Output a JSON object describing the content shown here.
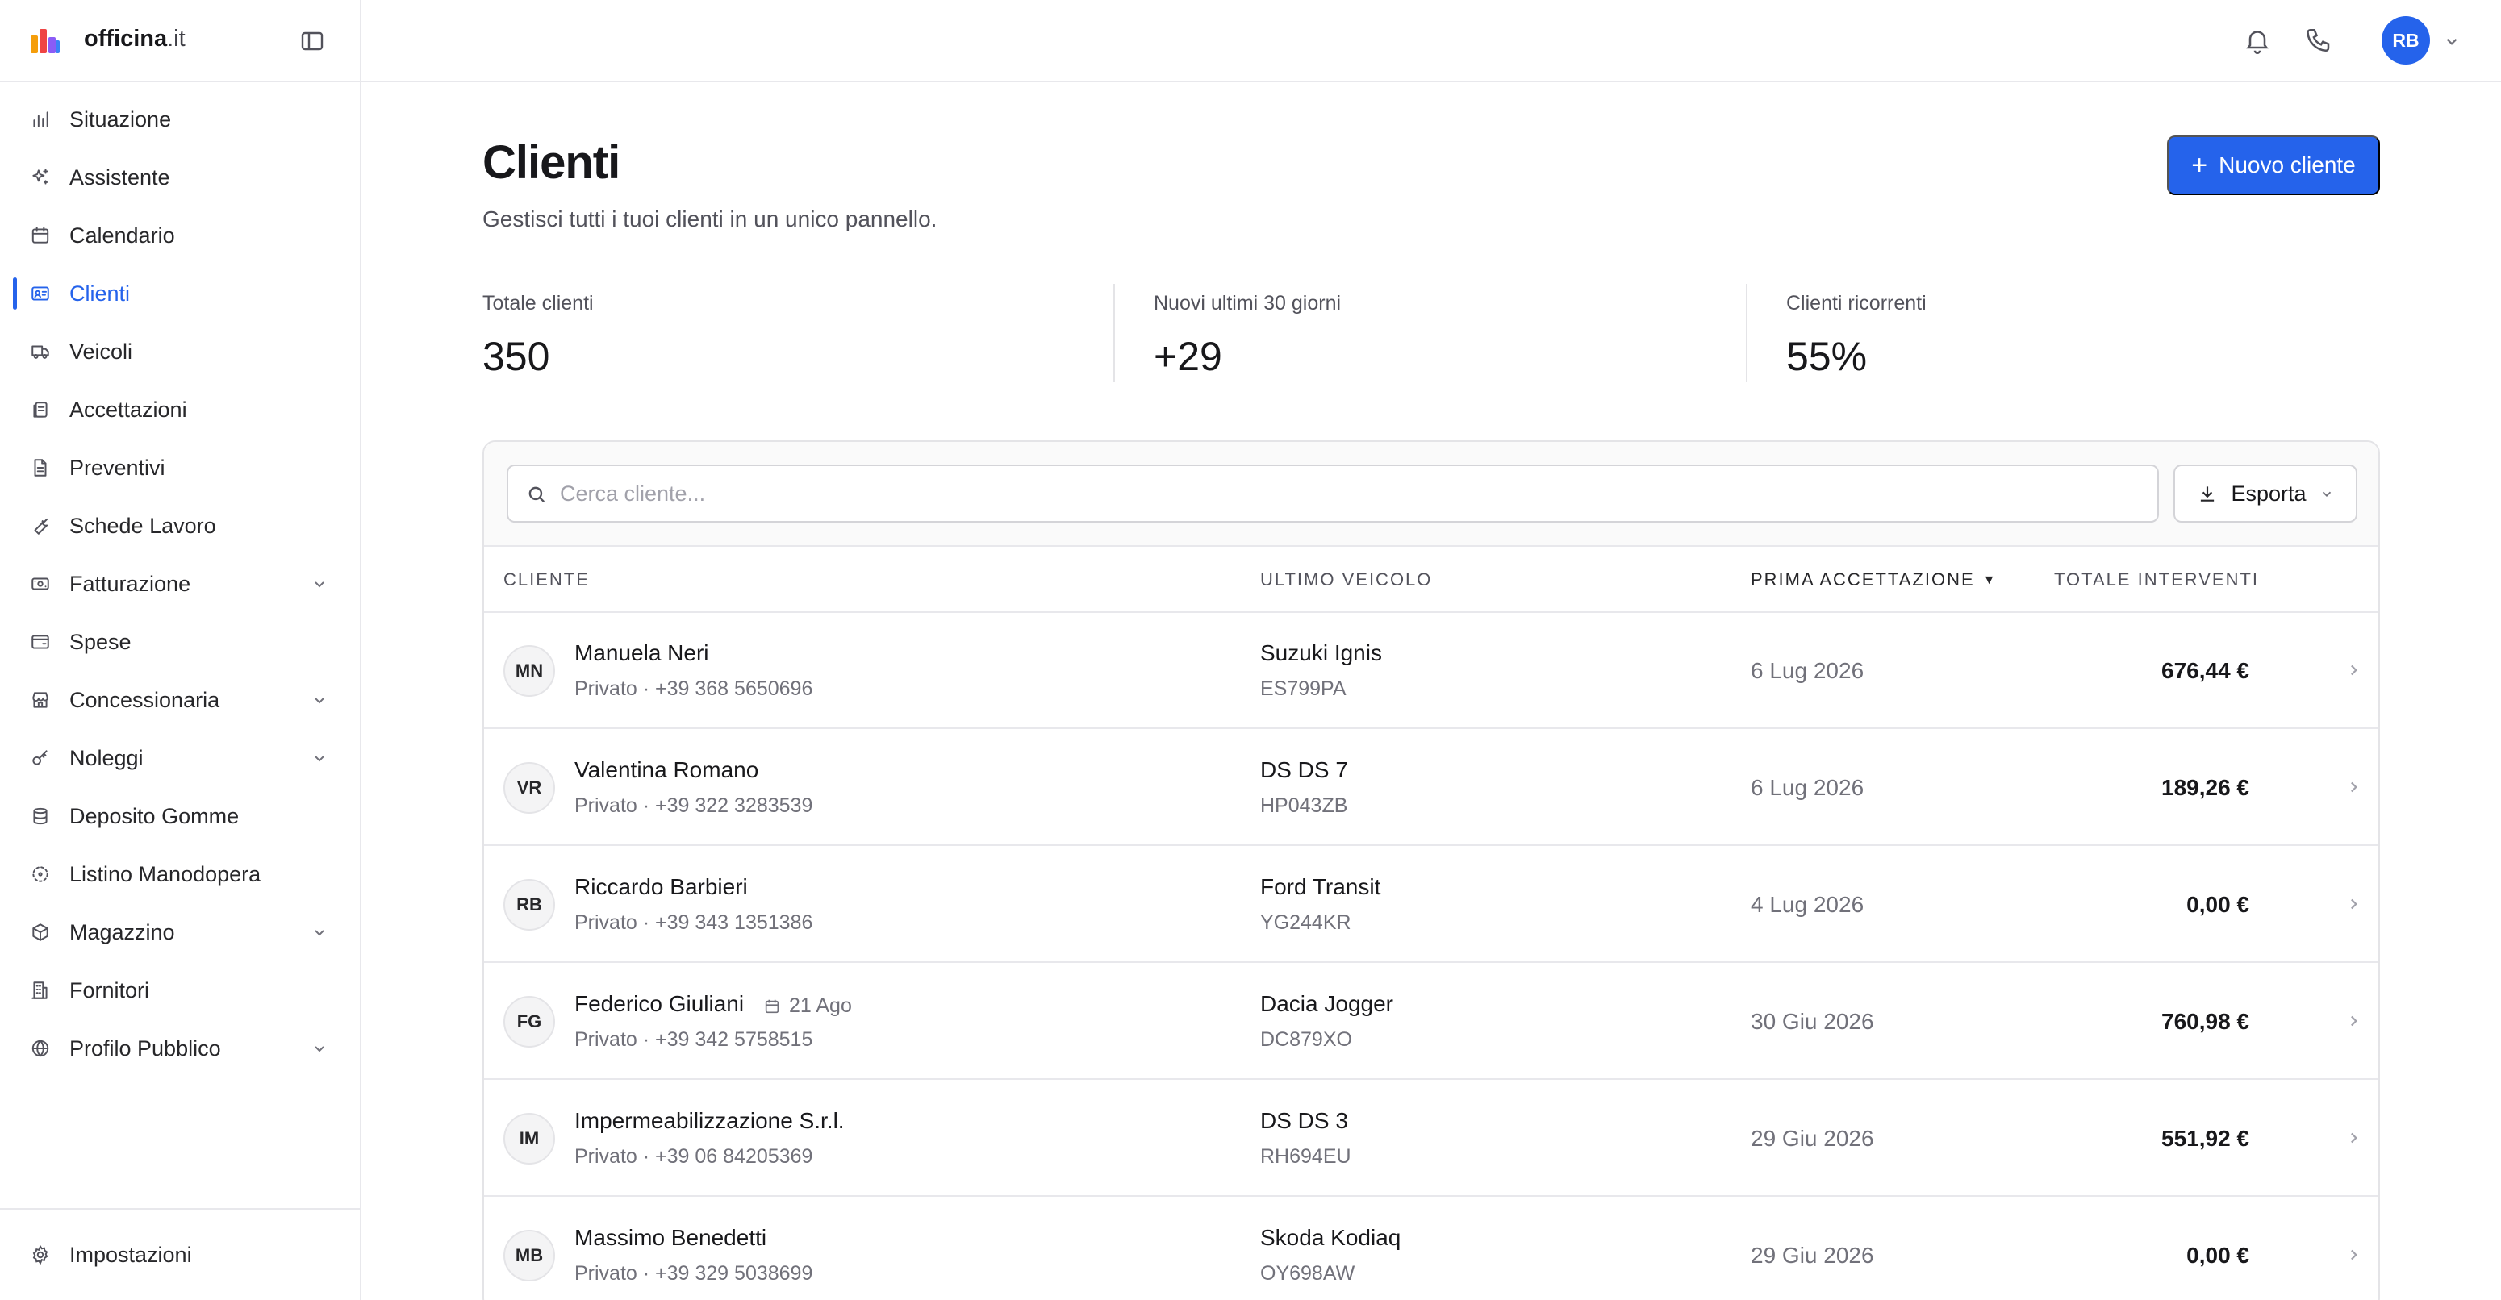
{
  "brand": {
    "name": "officina",
    "tld": ".it"
  },
  "sidebar": {
    "items": [
      {
        "label": "Situazione",
        "icon": "bar-chart-icon",
        "active": false,
        "expandable": false
      },
      {
        "label": "Assistente",
        "icon": "sparkles-icon",
        "active": false,
        "expandable": false
      },
      {
        "label": "Calendario",
        "icon": "calendar-icon",
        "active": false,
        "expandable": false
      },
      {
        "label": "Clienti",
        "icon": "contact-card-icon",
        "active": true,
        "expandable": false
      },
      {
        "label": "Veicoli",
        "icon": "truck-icon",
        "active": false,
        "expandable": false
      },
      {
        "label": "Accettazioni",
        "icon": "clipboard-copy-icon",
        "active": false,
        "expandable": false
      },
      {
        "label": "Preventivi",
        "icon": "document-icon",
        "active": false,
        "expandable": false
      },
      {
        "label": "Schede Lavoro",
        "icon": "wrench-icon",
        "active": false,
        "expandable": false
      },
      {
        "label": "Fatturazione",
        "icon": "banknote-icon",
        "active": false,
        "expandable": true
      },
      {
        "label": "Spese",
        "icon": "wallet-icon",
        "active": false,
        "expandable": false
      },
      {
        "label": "Concessionaria",
        "icon": "store-icon",
        "active": false,
        "expandable": true
      },
      {
        "label": "Noleggi",
        "icon": "key-icon",
        "active": false,
        "expandable": true
      },
      {
        "label": "Deposito Gomme",
        "icon": "database-icon",
        "active": false,
        "expandable": false
      },
      {
        "label": "Listino Manodopera",
        "icon": "dotted-circle-icon",
        "active": false,
        "expandable": false
      },
      {
        "label": "Magazzino",
        "icon": "package-icon",
        "active": false,
        "expandable": true
      },
      {
        "label": "Fornitori",
        "icon": "building-icon",
        "active": false,
        "expandable": false
      },
      {
        "label": "Profilo Pubblico",
        "icon": "globe-icon",
        "active": false,
        "expandable": true
      }
    ],
    "settings_label": "Impostazioni"
  },
  "topbar": {
    "user_initials": "RB"
  },
  "page": {
    "title": "Clienti",
    "subtitle": "Gestisci tutti i tuoi clienti in un unico pannello.",
    "new_button": "Nuovo cliente"
  },
  "stats": [
    {
      "label": "Totale clienti",
      "value": "350"
    },
    {
      "label": "Nuovi ultimi 30 giorni",
      "value": "+29"
    },
    {
      "label": "Clienti ricorrenti",
      "value": "55%"
    }
  ],
  "search": {
    "placeholder": "Cerca cliente...",
    "value": ""
  },
  "export_label": "Esporta",
  "table": {
    "headers": {
      "cliente": "CLIENTE",
      "veicolo": "ULTIMO VEICOLO",
      "accettazione": "PRIMA ACCETTAZIONE",
      "totale": "TOTALE INTERVENTI"
    },
    "sort_column": "accettazione",
    "sort_direction": "desc",
    "rows": [
      {
        "initials": "MN",
        "name": "Manuela Neri",
        "birthday": "",
        "subtitle": "Privato · +39 368 5650696",
        "vehicle": "Suzuki Ignis",
        "plate": "ES799PA",
        "date": "6 Lug 2026",
        "total": "676,44 €"
      },
      {
        "initials": "VR",
        "name": "Valentina Romano",
        "birthday": "",
        "subtitle": "Privato · +39 322 3283539",
        "vehicle": "DS DS 7",
        "plate": "HP043ZB",
        "date": "6 Lug 2026",
        "total": "189,26 €"
      },
      {
        "initials": "RB",
        "name": "Riccardo Barbieri",
        "birthday": "",
        "subtitle": "Privato · +39 343 1351386",
        "vehicle": "Ford Transit",
        "plate": "YG244KR",
        "date": "4 Lug 2026",
        "total": "0,00 €"
      },
      {
        "initials": "FG",
        "name": "Federico Giuliani",
        "birthday": "21 Ago",
        "subtitle": "Privato · +39 342 5758515",
        "vehicle": "Dacia Jogger",
        "plate": "DC879XO",
        "date": "30 Giu 2026",
        "total": "760,98 €"
      },
      {
        "initials": "IM",
        "name": "Impermeabilizzazione S.r.l.",
        "birthday": "",
        "subtitle": "Privato · +39 06 84205369",
        "vehicle": "DS DS 3",
        "plate": "RH694EU",
        "date": "29 Giu 2026",
        "total": "551,92 €"
      },
      {
        "initials": "MB",
        "name": "Massimo Benedetti",
        "birthday": "",
        "subtitle": "Privato · +39 329 5038699",
        "vehicle": "Skoda Kodiaq",
        "plate": "OY698AW",
        "date": "29 Giu 2026",
        "total": "0,00 €"
      }
    ]
  },
  "colors": {
    "accent": "#2563eb",
    "text": "#18181b",
    "muted": "#71717a",
    "border": "#e4e4e7"
  }
}
